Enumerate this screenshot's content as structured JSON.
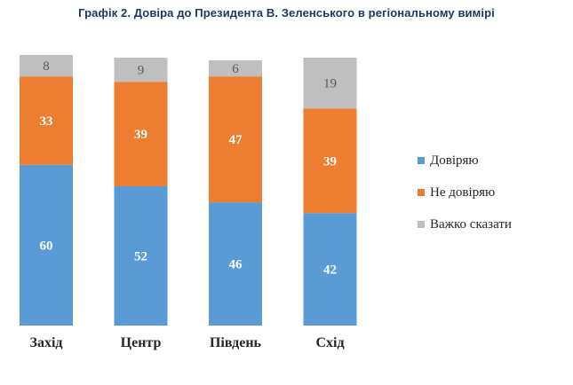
{
  "chart_data": {
    "type": "bar",
    "stacked": true,
    "percent": true,
    "title": "Графік 2. Довіра до Президента В. Зеленського в регіональному вимірі",
    "xlabel": "",
    "ylabel": "",
    "ylim": [
      0,
      101
    ],
    "grid": false,
    "legend_position": "right",
    "categories": [
      "Захід",
      "Центр",
      "Південь",
      "Схід"
    ],
    "series": [
      {
        "name": "Довіряю",
        "color": "#5b9bd5",
        "label_color": "#ffffff",
        "values": [
          60,
          52,
          46,
          42
        ]
      },
      {
        "name": "Не довіряю",
        "color": "#ed7d31",
        "label_color": "#ffffff",
        "values": [
          33,
          39,
          47,
          39
        ]
      },
      {
        "name": "Важко сказати",
        "color": "#bfbfbf",
        "label_color": "#595959",
        "values": [
          8,
          9,
          6,
          19
        ]
      }
    ]
  }
}
